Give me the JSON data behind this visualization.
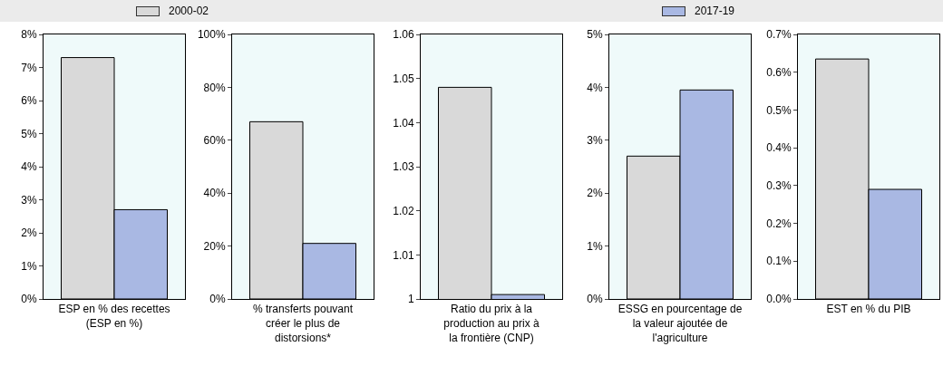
{
  "chart_data": [
    {
      "type": "bar",
      "categories": [
        "ESP en % des recettes (ESP en %)"
      ],
      "legend": "top",
      "series": [
        {
          "name": "2000-02",
          "color": "#d9d9d9",
          "values": [
            7.3
          ]
        },
        {
          "name": "2017-19",
          "color": "#a9b8e3",
          "values": [
            2.7
          ]
        }
      ],
      "ylim": [
        0,
        8
      ],
      "yticks": [
        {
          "value": 0,
          "label": "0%"
        },
        {
          "value": 1,
          "label": "1%"
        },
        {
          "value": 2,
          "label": "2%"
        },
        {
          "value": 3,
          "label": "3%"
        },
        {
          "value": 4,
          "label": "4%"
        },
        {
          "value": 5,
          "label": "5%"
        },
        {
          "value": 6,
          "label": "6%"
        },
        {
          "value": 7,
          "label": "7%"
        },
        {
          "value": 8,
          "label": "8%"
        }
      ]
    },
    {
      "type": "bar",
      "categories": [
        "% transferts pouvant créer le plus de distorsions*"
      ],
      "series": [
        {
          "name": "2000-02",
          "color": "#d9d9d9",
          "values": [
            67
          ]
        },
        {
          "name": "2017-19",
          "color": "#a9b8e3",
          "values": [
            21
          ]
        }
      ],
      "ylim": [
        0,
        100
      ],
      "yticks": [
        {
          "value": 0,
          "label": "0%"
        },
        {
          "value": 20,
          "label": "20%"
        },
        {
          "value": 40,
          "label": "40%"
        },
        {
          "value": 60,
          "label": "60%"
        },
        {
          "value": 80,
          "label": "80%"
        },
        {
          "value": 100,
          "label": "100%"
        }
      ]
    },
    {
      "type": "bar",
      "categories": [
        "Ratio du prix à la production au prix à la frontière (CNP)"
      ],
      "series": [
        {
          "name": "2000-02",
          "color": "#d9d9d9",
          "values": [
            1.048
          ]
        },
        {
          "name": "2017-19",
          "color": "#a9b8e3",
          "values": [
            1.001
          ]
        }
      ],
      "ylim": [
        1,
        1.06
      ],
      "yticks": [
        1,
        1.01,
        1.02,
        1.03,
        1.04,
        1.05,
        1.06
      ]
    },
    {
      "type": "bar",
      "categories": [
        "ESSG en pourcentage de la valeur ajoutée de l'agriculture"
      ],
      "series": [
        {
          "name": "2000-02",
          "color": "#d9d9d9",
          "values": [
            2.7
          ]
        },
        {
          "name": "2017-19",
          "color": "#a9b8e3",
          "values": [
            3.95
          ]
        }
      ],
      "ylim": [
        0,
        5
      ],
      "yticks": [
        {
          "value": 0,
          "label": "0%"
        },
        {
          "value": 1,
          "label": "1%"
        },
        {
          "value": 2,
          "label": "2%"
        },
        {
          "value": 3,
          "label": "3%"
        },
        {
          "value": 4,
          "label": "4%"
        },
        {
          "value": 5,
          "label": "5%"
        }
      ]
    },
    {
      "type": "bar",
      "categories": [
        "EST en % du PIB"
      ],
      "series": [
        {
          "name": "2000-02",
          "color": "#d9d9d9",
          "values": [
            0.635
          ]
        },
        {
          "name": "2017-19",
          "color": "#a9b8e3",
          "values": [
            0.29
          ]
        }
      ],
      "ylim": [
        0,
        0.7
      ],
      "yticks": [
        {
          "value": 0,
          "label": "0.0%"
        },
        {
          "value": 0.1,
          "label": "0.1%"
        },
        {
          "value": 0.2,
          "label": "0.2%"
        },
        {
          "value": 0.3,
          "label": "0.3%"
        },
        {
          "value": 0.4,
          "label": "0.4%"
        },
        {
          "value": 0.5,
          "label": "0.5%"
        },
        {
          "value": 0.6,
          "label": "0.6%"
        },
        {
          "value": 0.7,
          "label": "0.7%"
        }
      ]
    }
  ]
}
